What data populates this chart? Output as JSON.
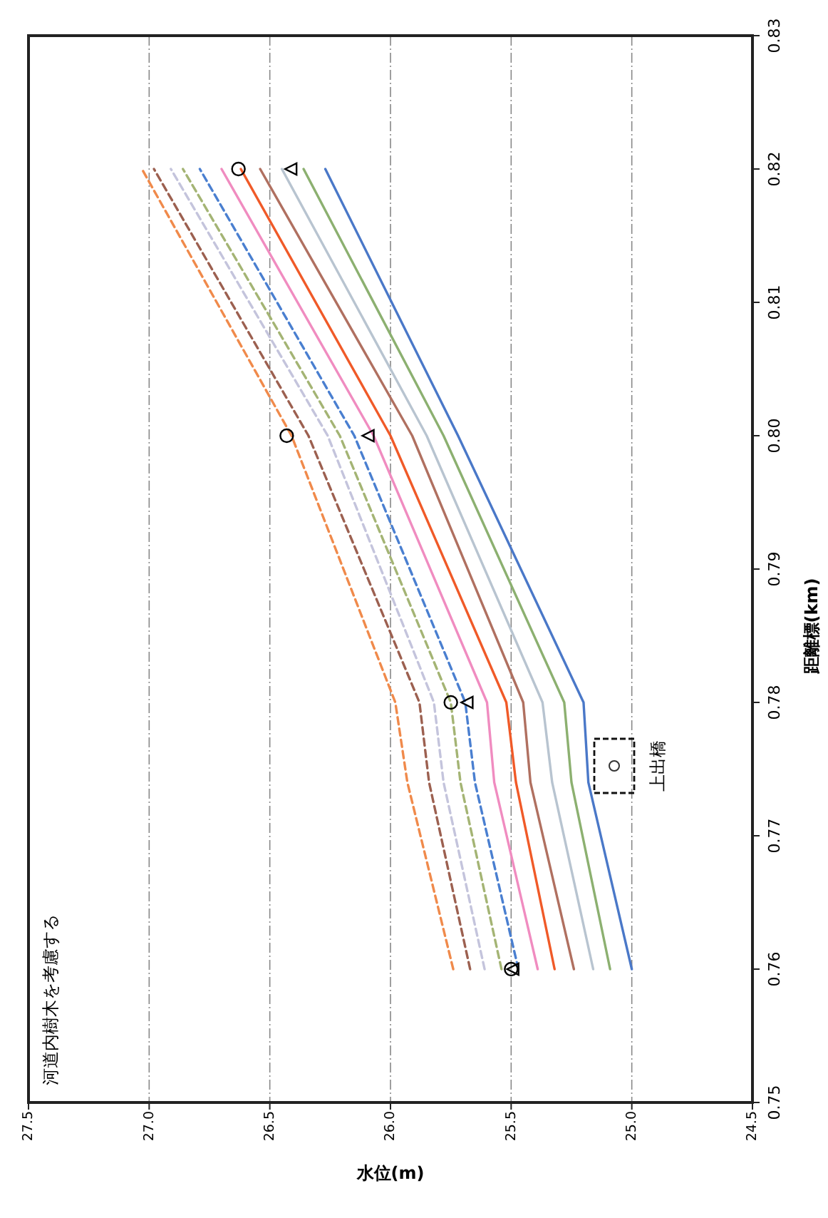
{
  "chart_data": {
    "type": "line",
    "xlabel": "水位(m)",
    "ylabel": "距離標(km)",
    "xlim": [
      27.5,
      24.5
    ],
    "xticks": [
      {
        "value": 27.5,
        "label": "27.5"
      },
      {
        "value": 27,
        "label": "27.0"
      },
      {
        "value": 26.5,
        "label": "26.5"
      },
      {
        "value": 26,
        "label": "26.0"
      },
      {
        "value": 25.5,
        "label": "25.5"
      },
      {
        "value": 25,
        "label": "25.0"
      },
      {
        "value": 24.5,
        "label": "24.5"
      }
    ],
    "ylim": [
      0.75,
      0.83
    ],
    "yticks": [
      {
        "value": 0.75,
        "label": "0.75"
      },
      {
        "value": 0.76,
        "label": "0.76"
      },
      {
        "value": 0.77,
        "label": "0.77"
      },
      {
        "value": 0.78,
        "label": "0.78"
      },
      {
        "value": 0.79,
        "label": "0.79"
      },
      {
        "value": 0.8,
        "label": "0.80"
      },
      {
        "value": 0.81,
        "label": "0.81"
      },
      {
        "value": 0.82,
        "label": "0.82"
      },
      {
        "value": 0.83,
        "label": "0.83"
      }
    ],
    "grid": "x",
    "annotations": [
      "河道内樹木を考慮する",
      "上出橋"
    ],
    "series": [
      {
        "color": "#f08a4b",
        "line_style": "dashed",
        "x": [
          25.74,
          25.93,
          25.98,
          26.41,
          27.03
        ],
        "values": [
          0.76,
          0.774,
          0.78,
          0.8,
          0.82
        ]
      },
      {
        "color": "#9c6050",
        "line_style": "dashed",
        "x": [
          25.67,
          25.84,
          25.88,
          26.34,
          26.98
        ],
        "values": [
          0.76,
          0.774,
          0.78,
          0.8,
          0.82
        ]
      },
      {
        "color": "#c4c4dc",
        "line_style": "dashed",
        "x": [
          25.61,
          25.78,
          25.82,
          26.26,
          26.91
        ],
        "values": [
          0.76,
          0.774,
          0.78,
          0.8,
          0.82
        ]
      },
      {
        "color": "#a4b474",
        "line_style": "dashed",
        "x": [
          25.54,
          25.71,
          25.75,
          26.21,
          26.86
        ],
        "values": [
          0.76,
          0.774,
          0.78,
          0.8,
          0.82
        ]
      },
      {
        "color": "#4a7fd0",
        "line_style": "dashed",
        "x": [
          25.47,
          25.65,
          25.69,
          26.15,
          26.79
        ],
        "values": [
          0.76,
          0.774,
          0.78,
          0.8,
          0.82
        ]
      },
      {
        "color": "#f08cc0",
        "line_style": "solid",
        "x": [
          25.39,
          25.57,
          25.6,
          26.07,
          26.7
        ],
        "values": [
          0.76,
          0.774,
          0.78,
          0.8,
          0.82
        ]
      },
      {
        "color": "#f05a28",
        "line_style": "solid",
        "x": [
          25.32,
          25.48,
          25.52,
          26.0,
          26.62
        ],
        "values": [
          0.76,
          0.774,
          0.78,
          0.8,
          0.82
        ]
      },
      {
        "color": "#b07060",
        "line_style": "solid",
        "x": [
          25.24,
          25.42,
          25.45,
          25.91,
          26.54
        ],
        "values": [
          0.76,
          0.774,
          0.78,
          0.8,
          0.82
        ]
      },
      {
        "color": "#b8c4d0",
        "line_style": "solid",
        "x": [
          25.16,
          25.33,
          25.37,
          25.85,
          26.45
        ],
        "values": [
          0.76,
          0.774,
          0.78,
          0.8,
          0.82
        ]
      },
      {
        "color": "#8cb070",
        "line_style": "solid",
        "x": [
          25.09,
          25.25,
          25.28,
          25.78,
          26.36
        ],
        "values": [
          0.76,
          0.774,
          0.78,
          0.8,
          0.82
        ]
      },
      {
        "color": "#4a78c8",
        "line_style": "solid",
        "x": [
          25.0,
          25.18,
          25.2,
          25.72,
          26.27
        ],
        "values": [
          0.76,
          0.774,
          0.78,
          0.8,
          0.82
        ]
      },
      {
        "type": "scatter",
        "marker": "circle",
        "color": "#000000",
        "x": [
          25.5,
          25.75,
          26.43,
          26.63
        ],
        "values": [
          0.76,
          0.78,
          0.8,
          0.82
        ]
      },
      {
        "type": "scatter",
        "marker": "triangle",
        "color": "#000000",
        "x": [
          25.49,
          25.68,
          26.09,
          26.41
        ],
        "values": [
          0.76,
          0.78,
          0.8,
          0.82
        ]
      }
    ]
  }
}
